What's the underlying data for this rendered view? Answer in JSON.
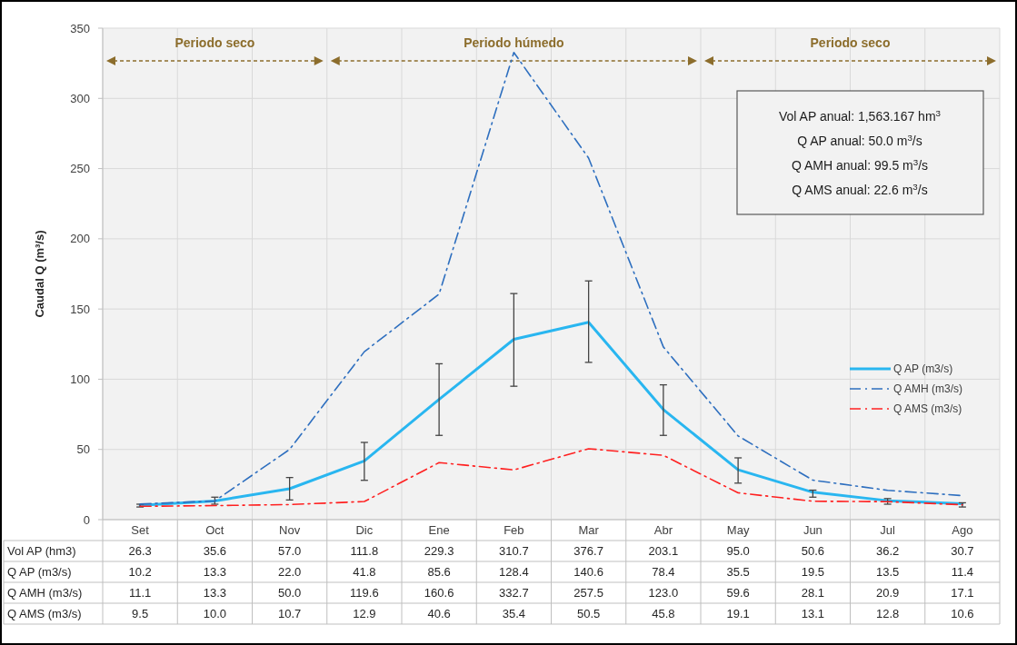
{
  "chart_data": [
    {
      "type": "line",
      "ylabel": "Caudal Q (m³/s)",
      "categories": [
        null,
        null,
        null,
        null,
        null,
        null,
        null,
        null,
        null,
        null,
        null,
        null
      ],
      "series": [
        {
          "name": "Q AP (m3/s)",
          "color": "#29b6f0",
          "line_style": "solid",
          "values": [
            10.2,
            13.3,
            22.0,
            41.8,
            85.6,
            128.4,
            140.6,
            78.4,
            35.5,
            19.5,
            13.5,
            11.4
          ],
          "errors": [
            [
              9,
              11
            ],
            [
              11,
              16
            ],
            [
              14,
              30
            ],
            [
              28,
              55
            ],
            [
              60,
              111
            ],
            [
              95,
              161
            ],
            [
              112,
              170
            ],
            [
              60,
              96
            ],
            [
              26,
              44
            ],
            [
              16,
              21
            ],
            [
              11,
              15
            ],
            [
              9,
              12
            ]
          ]
        },
        {
          "name": "Q AMH (m3/s)",
          "color": "#2e6fbf",
          "line_style": "dashed",
          "values": [
            11.1,
            13.3,
            50.0,
            119.6,
            160.6,
            332.7,
            257.5,
            123.0,
            59.6,
            28.1,
            20.9,
            17.1
          ]
        },
        {
          "name": "Q AMS (m3/s)",
          "color": "#ff2020",
          "line_style": "dashed",
          "values": [
            9.5,
            10.0,
            10.7,
            12.9,
            40.6,
            35.4,
            50.5,
            45.8,
            19.1,
            13.1,
            12.8,
            10.6
          ]
        }
      ],
      "ylim": [
        0,
        350
      ],
      "yticks": [
        0,
        50,
        100,
        150,
        200,
        250,
        300,
        350
      ],
      "grid": true,
      "legend": "right",
      "marker": "none",
      "annotations": [
        "Periodo seco",
        "Periodo húmedo",
        "Periodo seco",
        "Vol AP anual: 1,563.167 hm$^{3}$",
        "Q AP anual: 50.0 m$^{3}$/s",
        "Q AMH anual: 99.5 m$^{3}$/s",
        "Q AMS anual: 22.6 m$^{3}$/s"
      ]
    },
    {
      "type": "other",
      "categories": [
        "Set",
        "Oct",
        "Nov",
        "Dic",
        "Ene",
        "Feb",
        "Mar",
        "Abr",
        "May",
        "Jun",
        "Jul",
        "Ago"
      ],
      "series": [
        {
          "name": "Vol AP (hm3)",
          "values": [
            26.3,
            35.6,
            57.0,
            111.8,
            229.3,
            310.7,
            376.7,
            203.1,
            95.0,
            50.6,
            36.2,
            30.7
          ],
          "value_labels": [
            "26.3",
            "35.6",
            "57.0",
            "111.8",
            "229.3",
            "310.7",
            "376.7",
            "203.1",
            "95.0",
            "50.6",
            "36.2",
            "30.7"
          ]
        },
        {
          "name": "Q AP (m3/s)",
          "values": [
            10.2,
            13.3,
            22.0,
            41.8,
            85.6,
            128.4,
            140.6,
            78.4,
            35.5,
            19.5,
            13.5,
            11.4
          ],
          "value_labels": [
            "10.2",
            "13.3",
            "22.0",
            "41.8",
            "85.6",
            "128.4",
            "140.6",
            "78.4",
            "35.5",
            "19.5",
            "13.5",
            "11.4"
          ]
        },
        {
          "name": "Q AMH (m3/s)",
          "values": [
            11.1,
            13.3,
            50.0,
            119.6,
            160.6,
            332.7,
            257.5,
            123.0,
            59.6,
            28.1,
            20.9,
            17.1
          ],
          "value_labels": [
            "11.1",
            "13.3",
            "50.0",
            "119.6",
            "160.6",
            "332.7",
            "257.5",
            "123.0",
            "59.6",
            "28.1",
            "20.9",
            "17.1"
          ]
        },
        {
          "name": "Q AMS (m3/s)",
          "values": [
            9.5,
            10.0,
            10.7,
            12.9,
            40.6,
            35.4,
            50.5,
            45.8,
            19.1,
            13.1,
            12.8,
            10.6
          ],
          "value_labels": [
            "9.5",
            "10.0",
            "10.7",
            "12.9",
            "40.6",
            "35.4",
            "50.5",
            "45.8",
            "19.1",
            "13.1",
            "12.8",
            "10.6"
          ]
        }
      ]
    }
  ]
}
